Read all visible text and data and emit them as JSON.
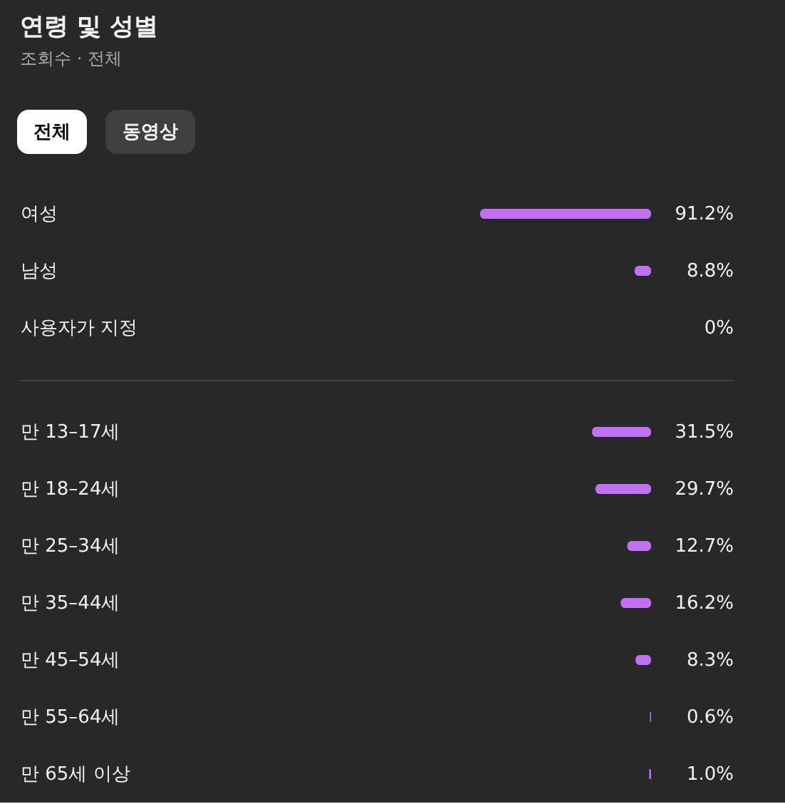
{
  "chart_data": [
    {
      "type": "bar",
      "orientation": "horizontal",
      "title": "연령 및 성별",
      "subtitle": "조회수 · 전체",
      "annotations": [
        "전체",
        "동영상"
      ],
      "categories": [
        "여성",
        "남성",
        "사용자가 지정"
      ],
      "values": [
        91.2,
        8.8,
        0
      ],
      "value_labels": [
        "91.2%",
        "8.8%",
        "0%"
      ],
      "color": "#c070f0",
      "tick_labels": "y"
    },
    {
      "type": "bar",
      "orientation": "horizontal",
      "categories": [
        "만 13–17세",
        "만 18–24세",
        "만 25–34세",
        "만 35–44세",
        "만 45–54세",
        "만 55–64세",
        "만 65세 이상"
      ],
      "values": [
        31.5,
        29.7,
        12.7,
        16.2,
        8.3,
        0.6,
        1.0
      ],
      "value_labels": [
        "31.5%",
        "29.7%",
        "12.7%",
        "16.2%",
        "8.3%",
        "0.6%",
        "1.0%"
      ],
      "color": "#c070f0",
      "tick_labels": "y"
    }
  ]
}
